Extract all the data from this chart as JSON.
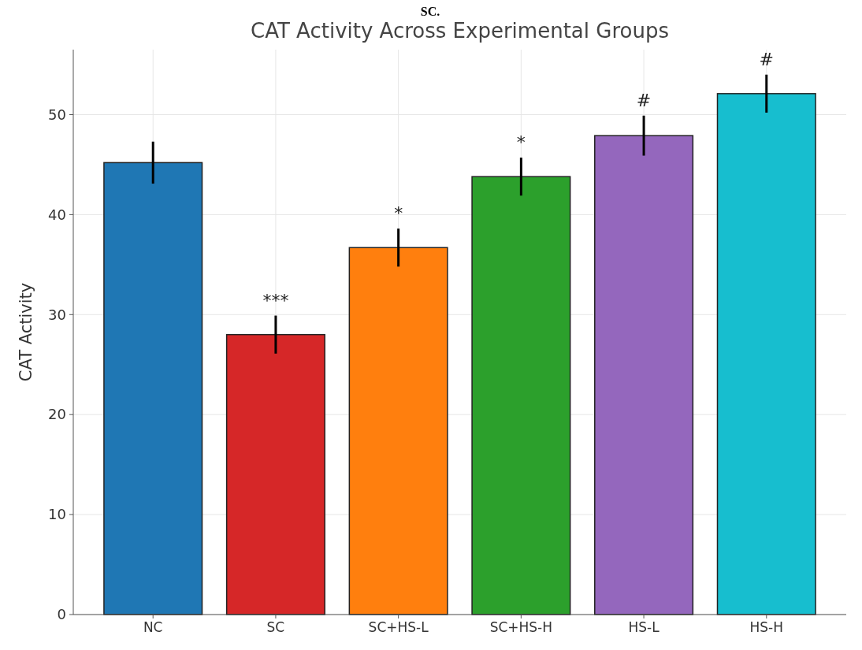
{
  "chart_data": {
    "type": "bar",
    "title": "CAT Activity Across Experimental Groups",
    "ylabel": "CAT Activity",
    "categories": [
      "NC",
      "SC",
      "SC+HS-L",
      "SC+HS-H",
      "HS-L",
      "HS-H"
    ],
    "values": [
      45.2,
      28.0,
      36.7,
      43.8,
      47.9,
      52.1
    ],
    "errors": [
      2.1,
      1.9,
      1.9,
      1.9,
      2.0,
      1.9
    ],
    "colors": [
      "#1f77b4",
      "#d62728",
      "#ff7f0e",
      "#2ca02c",
      "#9467bd",
      "#17becf"
    ],
    "ylim": [
      0,
      56.5
    ],
    "yticks": [
      0,
      10,
      20,
      30,
      40,
      50
    ],
    "grid": true,
    "annotations": [
      "SC.",
      {
        "text": "***",
        "x": "SC",
        "y": 28.0
      },
      {
        "text": "*",
        "x": "SC+HS-L",
        "y": 36.7
      },
      {
        "text": "*",
        "x": "SC+HS-H",
        "y": 43.8
      },
      {
        "text": "#",
        "x": "HS-L",
        "y": 47.9
      },
      {
        "text": "#",
        "x": "HS-H",
        "y": 52.1
      }
    ]
  }
}
